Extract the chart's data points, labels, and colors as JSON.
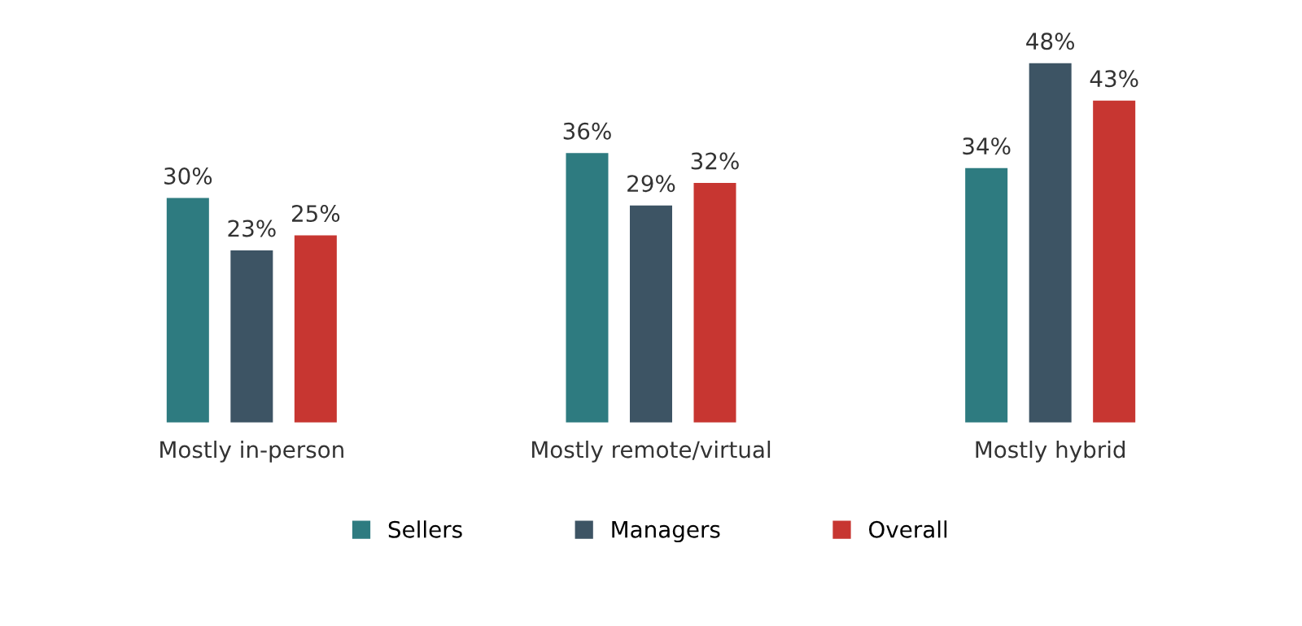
{
  "chart_data": {
    "type": "bar",
    "categories": [
      "Mostly in-person",
      "Mostly remote/virtual",
      "Mostly hybrid"
    ],
    "series": [
      {
        "name": "Sellers",
        "color": "#2e7b80",
        "values": [
          30,
          36,
          34
        ],
        "value_labels": [
          "30%",
          "36%",
          "34%"
        ]
      },
      {
        "name": "Managers",
        "color": "#3d5464",
        "values": [
          23,
          29,
          48
        ],
        "value_labels": [
          "23%",
          "29%",
          "48%"
        ]
      },
      {
        "name": "Overall",
        "color": "#c73631",
        "values": [
          25,
          32,
          43
        ],
        "value_labels": [
          "25%",
          "32%",
          "43%"
        ]
      }
    ],
    "legend": "bottom"
  }
}
